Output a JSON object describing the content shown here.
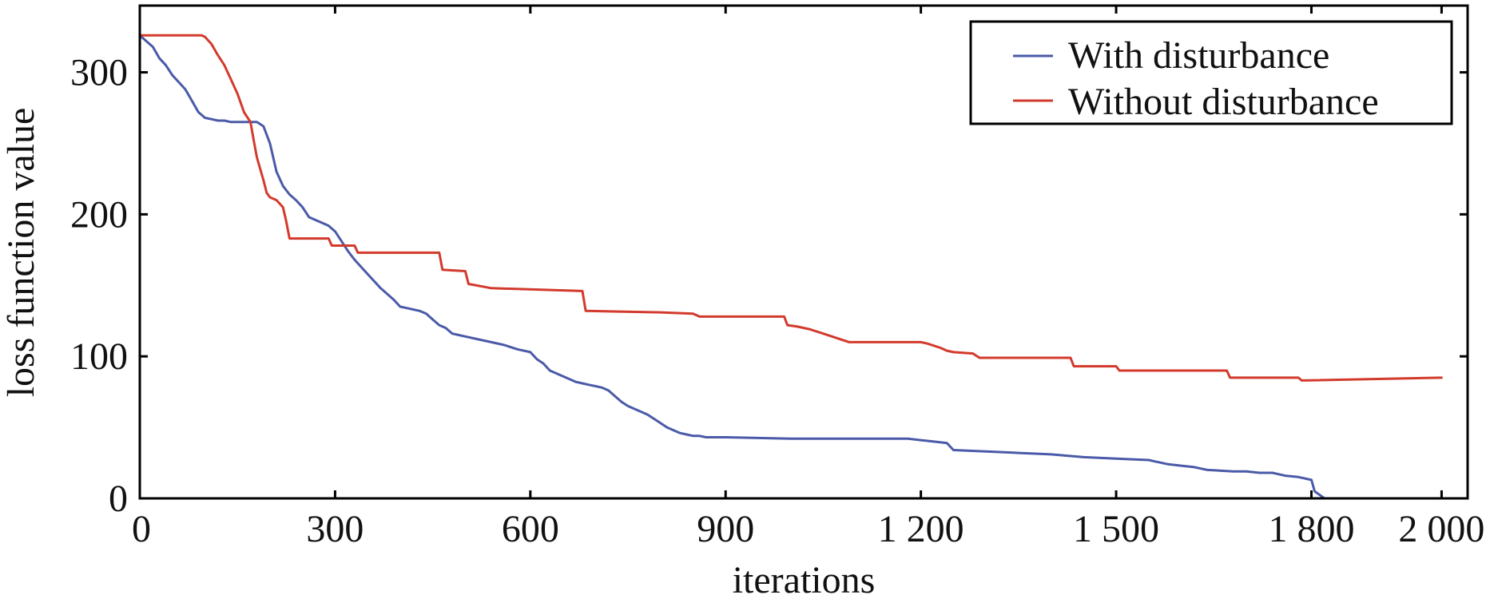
{
  "chart_data": {
    "type": "line",
    "title": "",
    "xlabel": "iterations",
    "ylabel": "loss function value",
    "xlim": [
      0,
      2040
    ],
    "ylim": [
      0,
      347
    ],
    "x_ticks": [
      0,
      300,
      600,
      900,
      1200,
      1500,
      1800,
      2000
    ],
    "x_tick_labels": [
      "0",
      "300",
      "600",
      "900",
      "1 200",
      "1 500",
      "1 800",
      "2 000"
    ],
    "y_ticks": [
      0,
      100,
      200,
      300
    ],
    "y_tick_labels": [
      "0",
      "100",
      "200",
      "300"
    ],
    "grid": false,
    "legend_position": "top-right",
    "series": [
      {
        "name": "With disturbance",
        "color": "#4a5aa8",
        "x": [
          0,
          10,
          20,
          30,
          40,
          50,
          60,
          70,
          80,
          90,
          100,
          110,
          120,
          130,
          140,
          150,
          160,
          170,
          180,
          190,
          200,
          210,
          220,
          230,
          240,
          250,
          260,
          270,
          280,
          290,
          300,
          310,
          320,
          330,
          340,
          350,
          360,
          370,
          380,
          390,
          400,
          410,
          420,
          430,
          440,
          450,
          460,
          470,
          480,
          490,
          500,
          520,
          540,
          560,
          580,
          600,
          610,
          620,
          630,
          640,
          650,
          660,
          670,
          680,
          690,
          700,
          710,
          720,
          730,
          740,
          750,
          760,
          770,
          780,
          790,
          800,
          810,
          820,
          830,
          840,
          850,
          860,
          870,
          900,
          1000,
          1100,
          1150,
          1180,
          1200,
          1220,
          1240,
          1250,
          1300,
          1350,
          1400,
          1450,
          1500,
          1550,
          1560,
          1580,
          1600,
          1620,
          1630,
          1640,
          1680,
          1700,
          1720,
          1740,
          1750,
          1760,
          1780,
          1800,
          1805,
          1820
        ],
        "y": [
          326,
          322,
          318,
          310,
          305,
          298,
          293,
          288,
          280,
          272,
          268,
          267,
          266,
          266,
          265,
          265,
          265,
          265,
          265,
          262,
          250,
          230,
          220,
          214,
          210,
          205,
          198,
          196,
          194,
          192,
          188,
          181,
          174,
          168,
          163,
          158,
          153,
          148,
          144,
          140,
          135,
          134,
          133,
          132,
          130,
          126,
          122,
          120,
          116,
          115,
          114,
          112,
          110,
          108,
          105,
          103,
          98,
          95,
          90,
          88,
          86,
          84,
          82,
          81,
          80,
          79,
          78,
          76,
          72,
          68,
          65,
          63,
          61,
          59,
          56,
          53,
          50,
          48,
          46,
          45,
          44,
          44,
          43,
          43,
          42,
          42,
          42,
          42,
          41,
          40,
          39,
          34,
          33,
          32,
          31,
          29,
          28,
          27,
          26,
          24,
          23,
          22,
          21,
          20,
          19,
          19,
          18,
          18,
          17,
          16,
          15,
          13,
          5,
          0
        ]
      },
      {
        "name": "Without disturbance",
        "color": "#d23a2c",
        "x": [
          0,
          50,
          95,
          100,
          110,
          120,
          130,
          140,
          150,
          160,
          170,
          175,
          180,
          185,
          190,
          195,
          200,
          210,
          220,
          225,
          230,
          290,
          295,
          330,
          335,
          460,
          465,
          500,
          505,
          540,
          680,
          685,
          800,
          850,
          860,
          990,
          995,
          1010,
          1030,
          1050,
          1070,
          1090,
          1200,
          1210,
          1230,
          1240,
          1250,
          1280,
          1290,
          1430,
          1435,
          1500,
          1505,
          1670,
          1675,
          1780,
          1785,
          2000
        ],
        "y": [
          326,
          326,
          326,
          325,
          320,
          312,
          305,
          295,
          285,
          272,
          265,
          252,
          240,
          232,
          224,
          215,
          212,
          210,
          205,
          195,
          183,
          183,
          178,
          178,
          173,
          173,
          161,
          160,
          151,
          148,
          146,
          132,
          131,
          130,
          128,
          128,
          122,
          121,
          119,
          116,
          113,
          110,
          110,
          109,
          106,
          104,
          103,
          102,
          99,
          99,
          93,
          93,
          90,
          90,
          85,
          85,
          83,
          85
        ]
      }
    ]
  }
}
